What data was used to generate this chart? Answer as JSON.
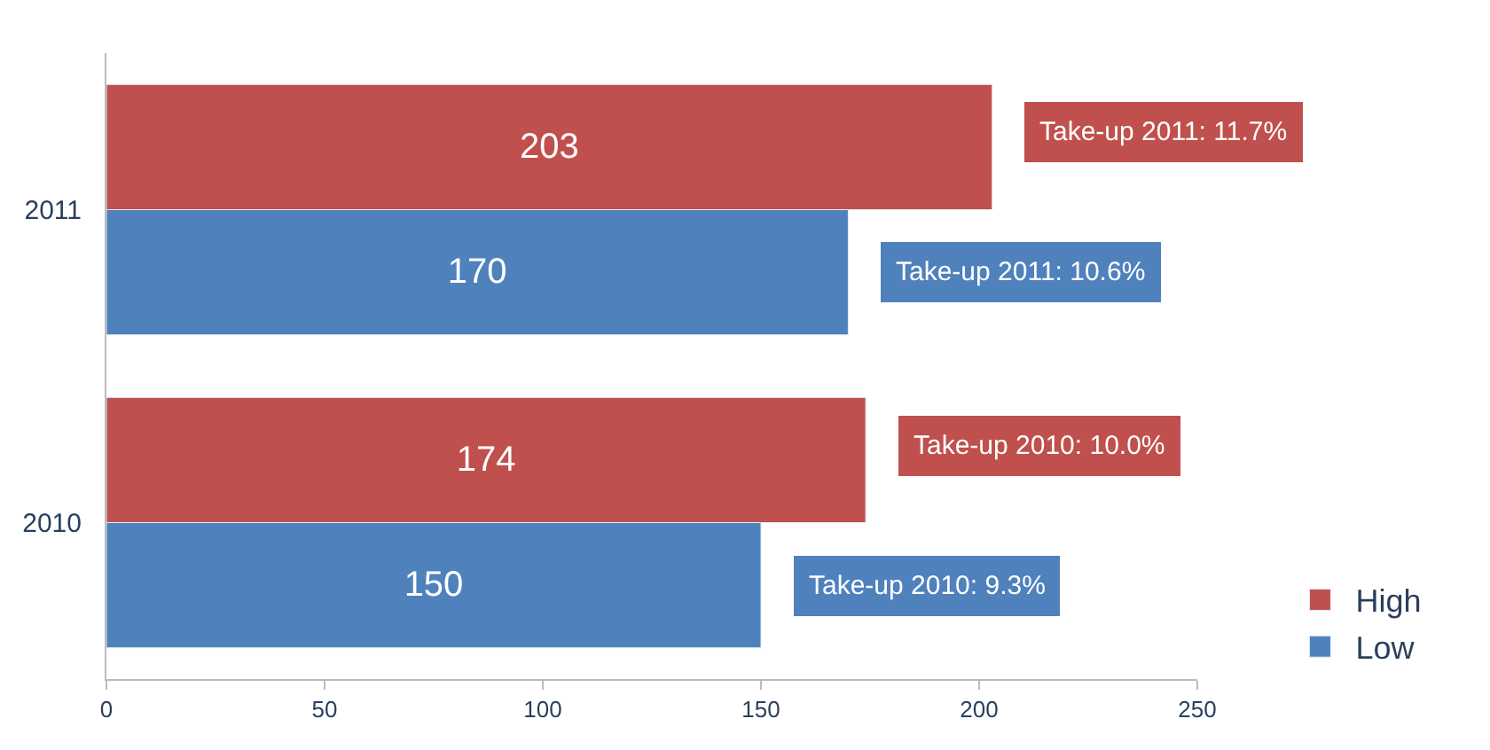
{
  "chart_data": {
    "type": "bar",
    "orientation": "horizontal",
    "categories": [
      "2011",
      "2010"
    ],
    "series": [
      {
        "name": "High",
        "color": "#c0504d",
        "values": [
          203,
          174
        ]
      },
      {
        "name": "Low",
        "color": "#4f81bd",
        "values": [
          170,
          150
        ]
      }
    ],
    "xlim": [
      0,
      250
    ],
    "xticks": [
      0,
      50,
      100,
      150,
      200,
      250
    ],
    "legend": "bottom right",
    "data_labels": true,
    "annotations": [
      {
        "text": "Take-up 2011: 11.7%",
        "x": 203,
        "y": "2011"
      },
      {
        "text": "Take-up 2011: 10.6%",
        "x": 170,
        "y": "2011"
      },
      {
        "text": "Take-up 2010: 10.0%",
        "x": 174,
        "y": "2010"
      },
      {
        "text": "Take-up 2010: 9.3%",
        "x": 150,
        "y": "2010"
      }
    ]
  }
}
